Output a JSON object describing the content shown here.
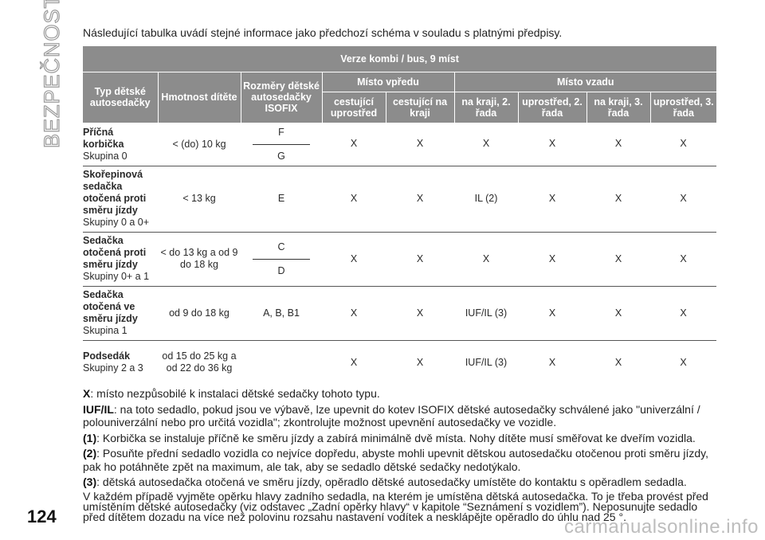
{
  "side_title": "BEZPEČNOST",
  "page_number": "124",
  "watermark": "carmanualsonline.info",
  "intro": "Následující tabulka uvádí stejné informace jako předchozí schéma v souladu s platnými předpisy.",
  "table": {
    "banner": "Verze kombi / bus, 9 míst",
    "col_type": "Typ dětské autosedačky",
    "col_weight": "Hmotnost dítěte",
    "col_size": "Rozměry dětské autosedačky ISOFIX",
    "group_front": "Místo vpředu",
    "group_rear": "Místo vzadu",
    "sub_front_center": "cestující uprostřed",
    "sub_front_side": "cestující na kraji",
    "sub_rear_side2": "na kraji, 2. řada",
    "sub_rear_center2": "uprostřed, 2. řada",
    "sub_rear_side3": "na kraji, 3. řada",
    "sub_rear_center3": "uprostřed, 3. řada",
    "rows": [
      {
        "name": "Příčná korbička",
        "group": "Skupina 0",
        "weight": "< (do) 10 kg",
        "size_a": "F",
        "size_b": "G",
        "c1": "X",
        "c2": "X",
        "c3": "X",
        "c4": "X",
        "c5": "X",
        "c6": "X"
      },
      {
        "name": "Skořepinová sedačka otočená proti směru jízdy",
        "group": "Skupiny 0 a 0+",
        "weight": "< 13 kg",
        "size": "E",
        "c1": "X",
        "c2": "X",
        "c3": "IL (2)",
        "c4": "X",
        "c5": "X",
        "c6": "X"
      },
      {
        "name": "Sedačka otočená proti směru jízdy",
        "group": "Skupiny 0+ a 1",
        "weight": "< do 13 kg a od 9 do 18 kg",
        "size_a": "C",
        "size_b": "D",
        "c1": "X",
        "c2": "X",
        "c3": "X",
        "c4": "X",
        "c5": "X",
        "c6": "X"
      },
      {
        "name": "Sedačka otočená ve směru jízdy",
        "group": "Skupina 1",
        "weight": "od 9 do 18 kg",
        "size": "A, B, B1",
        "c1": "X",
        "c2": "X",
        "c3": "IUF/IL (3)",
        "c4": "X",
        "c5": "X",
        "c6": "X"
      },
      {
        "name": "Podsedák",
        "group": "Skupiny 2 a 3",
        "weight": "od 15 do 25 kg a od 22 do 36 kg",
        "size": "",
        "c1": "X",
        "c2": "X",
        "c3": "IUF/IL (3)",
        "c4": "X",
        "c5": "X",
        "c6": "X"
      }
    ]
  },
  "notes": {
    "x_key": "X",
    "x_text": ": místo nezpůsobilé k instalaci dětské sedačky tohoto typu.",
    "iuf_key": "IUF/IL",
    "iuf_text": ": na toto sedadlo, pokud jsou ve výbavě, lze upevnit do kotev ISOFIX dětské autosedačky schválené jako \"univerzální / polouniverzální nebo pro určitá vozidla\"; zkontrolujte možnost upevnění autosedačky ve vozidle.",
    "n1_key": "(1)",
    "n1_text": ": Korbička se instaluje příčně ke směru jízdy a zabírá minimálně dvě místa. Nohy dítěte musí směřovat ke dveřím vozidla.",
    "n2_key": "(2)",
    "n2_text": ": Posuňte přední sedadlo vozidla co nejvíce dopředu, abyste mohli upevnit dětskou autosedačku otočenou proti směru jízdy, pak ho potáhněte zpět na maximum, ale tak, aby se sedadlo dětské sedačky nedotýkalo.",
    "n3_key": "(3)",
    "n3_text": ": dětská autosedačka otočená ve směru jízdy, opěradlo dětské autosedačky umístěte do kontaktu s opěradlem sedadla.",
    "final": "V každém případě vyjměte opěrku hlavy zadního sedadla, na kterém je umístěna dětská autosedačka. To je třeba provést před umístěním dětské autosedačky (viz odstavec „Zadní opěrky hlavy“ v kapitole “Seznámení s vozidlem”). Neposunujte sedadlo před dítětem dozadu na více než polovinu rozsahu nastavení vodítek a nesklápějte opěradlo do úhlu nad 25 °."
  }
}
